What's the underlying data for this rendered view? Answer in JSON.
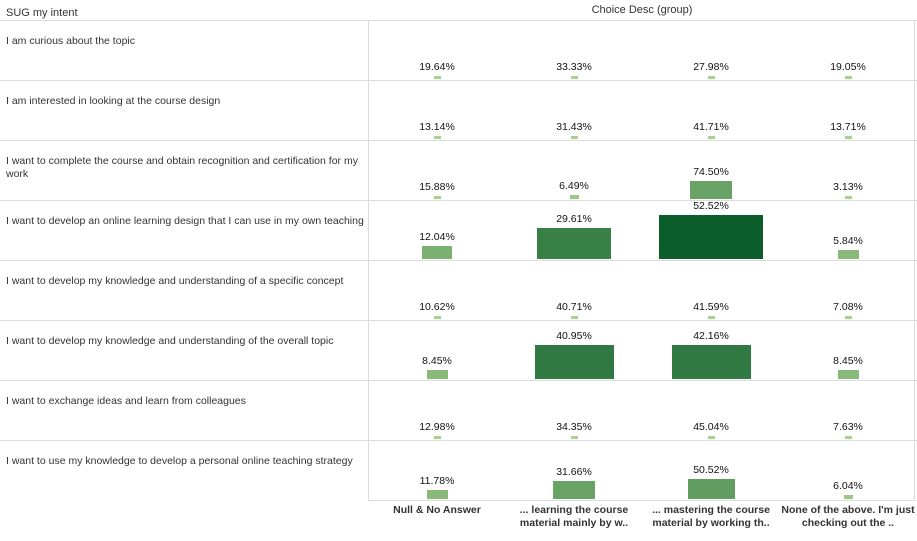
{
  "row_header": "SUG my intent",
  "column_header": "Choice Desc (group)",
  "chart_data": {
    "type": "heatmap",
    "title": "",
    "rows": [
      "I am curious about the topic",
      "I am interested in looking at the course design",
      "I want to complete the course and obtain recognition and certification for my work",
      "I want to develop an online learning design that I can use in my own teaching",
      "I want to develop my knowledge and understanding of a specific concept",
      "I want to develop my knowledge and understanding of the overall topic",
      "I want to exchange ideas and learn from colleagues",
      "I want to use my knowledge to develop a personal online teaching strategy"
    ],
    "columns": [
      "Null & No Answer",
      "... learning the course material mainly by w..",
      "... mastering the course material by working th..",
      "None of the above. I'm just checking out the .."
    ],
    "values": [
      [
        19.64,
        33.33,
        27.98,
        19.05
      ],
      [
        13.14,
        31.43,
        41.71,
        13.71
      ],
      [
        15.88,
        6.49,
        74.5,
        3.13
      ],
      [
        12.04,
        29.61,
        52.52,
        5.84
      ],
      [
        10.62,
        40.71,
        41.59,
        7.08
      ],
      [
        8.45,
        40.95,
        42.16,
        8.45
      ],
      [
        12.98,
        34.35,
        45.04,
        7.63
      ],
      [
        11.78,
        31.66,
        50.52,
        6.04
      ]
    ],
    "counts": [
      [
        0,
        0,
        0,
        0
      ],
      [
        0,
        0,
        0,
        0
      ],
      [
        0,
        1,
        20,
        0
      ],
      [
        10,
        60,
        120,
        5
      ],
      [
        0,
        0,
        0,
        0
      ],
      [
        5,
        70,
        70,
        5
      ],
      [
        0,
        0,
        0,
        0
      ],
      [
        5,
        20,
        25,
        1
      ]
    ],
    "value_labels": [
      [
        "19.64%",
        "33.33%",
        "27.98%",
        "19.05%"
      ],
      [
        "13.14%",
        "31.43%",
        "41.71%",
        "13.71%"
      ],
      [
        "15.88%",
        "6.49%",
        "74.50%",
        "3.13%"
      ],
      [
        "12.04%",
        "29.61%",
        "52.52%",
        "5.84%"
      ],
      [
        "10.62%",
        "40.71%",
        "41.59%",
        "7.08%"
      ],
      [
        "8.45%",
        "40.95%",
        "42.16%",
        "8.45%"
      ],
      [
        "12.98%",
        "34.35%",
        "45.04%",
        "7.63%"
      ],
      [
        "11.78%",
        "31.66%",
        "50.52%",
        "6.04%"
      ]
    ],
    "color_scale": [
      "#a9d18e",
      "#0b5e2a"
    ],
    "grid": true
  }
}
